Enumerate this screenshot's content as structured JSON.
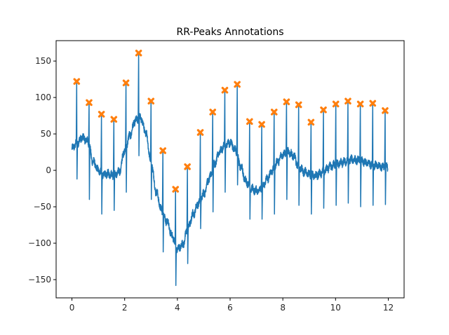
{
  "chart_data": {
    "type": "line",
    "title": "RR-Peaks Annotations",
    "xlabel": "",
    "ylabel": "",
    "xlim": [
      -0.6,
      12.6
    ],
    "ylim": [
      -175,
      178
    ],
    "xticks": [
      0,
      2,
      4,
      6,
      8,
      10,
      12
    ],
    "yticks": [
      -150,
      -100,
      -50,
      0,
      50,
      100,
      150
    ],
    "grid": false,
    "colors": {
      "signal": "#1f77b4",
      "peaks": "#ff7f0e"
    },
    "series": [
      {
        "kind": "ecg-signal",
        "baseline": {
          "x": [
            0,
            0.2,
            0.4,
            0.6,
            0.8,
            1.0,
            1.2,
            1.4,
            1.6,
            1.8,
            2.0,
            2.2,
            2.4,
            2.6,
            2.8,
            3.0,
            3.2,
            3.4,
            3.6,
            3.8,
            4.0,
            4.2,
            4.4,
            4.6,
            4.8,
            5.0,
            5.2,
            5.4,
            5.6,
            5.8,
            6.0,
            6.2,
            6.4,
            6.6,
            6.8,
            7.0,
            7.2,
            7.4,
            7.6,
            7.8,
            8.0,
            8.2,
            8.4,
            8.6,
            8.8,
            9.0,
            9.2,
            9.4,
            9.6,
            9.8,
            10.0,
            10.2,
            10.4,
            10.6,
            10.8,
            11.0,
            11.2,
            11.4,
            11.6,
            11.8,
            12.0
          ],
          "y": [
            30,
            38,
            45,
            40,
            12,
            0,
            -6,
            -5,
            -7,
            -2,
            28,
            48,
            68,
            72,
            52,
            12,
            -30,
            -55,
            -70,
            -90,
            -108,
            -102,
            -80,
            -60,
            -45,
            -32,
            -12,
            8,
            25,
            35,
            38,
            28,
            5,
            -15,
            -25,
            -28,
            -25,
            -12,
            0,
            12,
            22,
            25,
            20,
            5,
            -2,
            -5,
            -8,
            -5,
            0,
            5,
            8,
            10,
            12,
            15,
            14,
            12,
            10,
            8,
            6,
            5,
            4
          ]
        },
        "r_peaks": {
          "x": [
            0.18,
            0.65,
            1.12,
            1.59,
            2.05,
            2.53,
            3.0,
            3.45,
            3.93,
            4.38,
            4.87,
            5.34,
            5.8,
            6.27,
            6.74,
            7.2,
            7.67,
            8.14,
            8.6,
            9.07,
            9.54,
            10.01,
            10.47,
            10.94,
            11.41,
            11.88
          ],
          "y": [
            122,
            93,
            77,
            70,
            120,
            161,
            95,
            27,
            -26,
            5,
            52,
            80,
            110,
            118,
            67,
            63,
            80,
            94,
            90,
            66,
            83,
            91,
            95,
            91,
            92,
            82
          ]
        },
        "s_troughs": [
          -12,
          -40,
          -60,
          -55,
          -30,
          20,
          -40,
          -112,
          -158,
          -128,
          -80,
          -57,
          -30,
          -20,
          -67,
          -67,
          -60,
          -40,
          -48,
          -60,
          -52,
          -48,
          -45,
          -50,
          -48,
          -47
        ]
      }
    ]
  }
}
